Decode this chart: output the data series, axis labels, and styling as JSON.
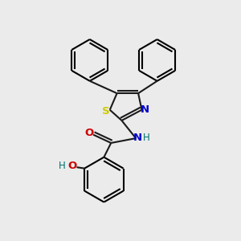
{
  "bg_color": "#ebebeb",
  "bond_color": "#1a1a1a",
  "S_color": "#cccc00",
  "N_color": "#0000cc",
  "O_color": "#cc0000",
  "H_color": "#007070",
  "line_width": 1.5,
  "figsize": [
    3.0,
    3.0
  ],
  "dpi": 100,
  "xlim": [
    0,
    10
  ],
  "ylim": [
    0,
    10
  ]
}
